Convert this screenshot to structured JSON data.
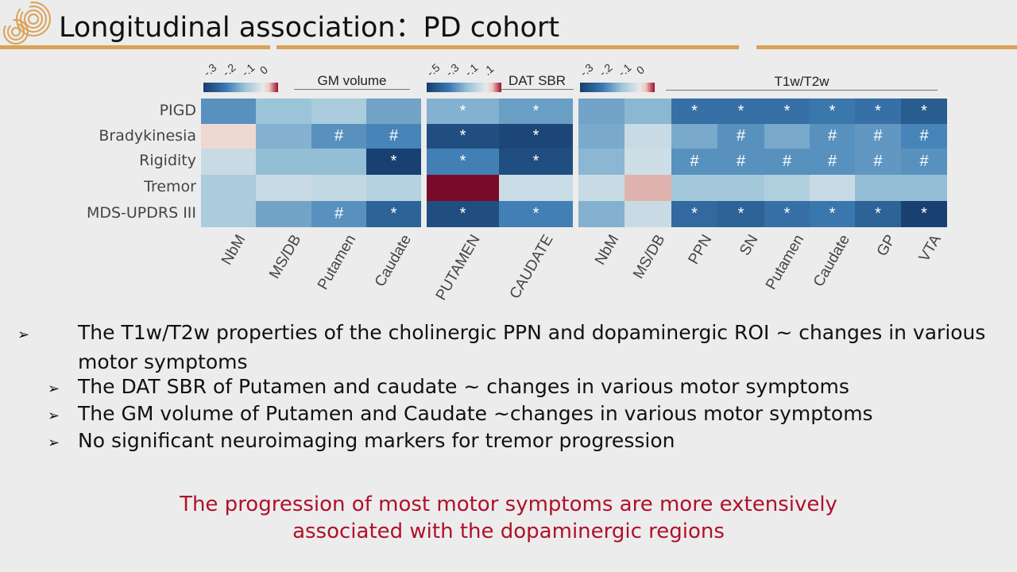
{
  "header": {
    "title": "Longitudinal association：PD cohort",
    "accent_color": "#d9a257"
  },
  "chart_data": {
    "type": "heatmap",
    "rows": [
      "PIGD",
      "Bradykinesia",
      "Rigidity",
      "Tremor",
      "MDS-UPDRS III"
    ],
    "panels": [
      {
        "group_label": "GM volume",
        "columns": [
          "NbM",
          "MS/DB",
          "Putamen",
          "Caudate"
        ],
        "colorbar_ticks": [
          "-.3",
          "-.2",
          "-.1",
          "0"
        ],
        "range": [
          -0.33,
          0.05
        ],
        "values": [
          [
            -0.2,
            -0.12,
            -0.1,
            -0.17
          ],
          [
            0.01,
            -0.15,
            -0.2,
            -0.22
          ],
          [
            -0.05,
            -0.13,
            -0.13,
            -0.32
          ],
          [
            -0.1,
            -0.05,
            -0.06,
            -0.08
          ],
          [
            -0.1,
            -0.17,
            -0.2,
            -0.27
          ]
        ],
        "marks": [
          [
            "",
            "",
            "",
            ""
          ],
          [
            "",
            "",
            "#",
            "#"
          ],
          [
            "",
            "",
            "",
            "*"
          ],
          [
            "",
            "",
            "",
            ""
          ],
          [
            "",
            "",
            "#",
            "*"
          ]
        ]
      },
      {
        "group_label": "DAT SBR",
        "columns": [
          "PUTAMEN",
          "CAUDATE"
        ],
        "colorbar_ticks": [
          "-.5",
          "-.3",
          "-.1",
          ".1"
        ],
        "range": [
          -0.55,
          0.15
        ],
        "values": [
          [
            -0.25,
            -0.3
          ],
          [
            -0.5,
            -0.52
          ],
          [
            -0.38,
            -0.5
          ],
          [
            0.15,
            -0.08
          ],
          [
            -0.5,
            -0.38
          ]
        ],
        "marks": [
          [
            "*",
            "*"
          ],
          [
            "*",
            "*"
          ],
          [
            "*",
            "*"
          ],
          [
            "",
            ""
          ],
          [
            "*",
            "*"
          ]
        ]
      },
      {
        "group_label": "T1w/T2w",
        "columns": [
          "NbM",
          "MS/DB",
          "PPN",
          "SN",
          "Putamen",
          "Caudate",
          "GP",
          "VTA"
        ],
        "colorbar_ticks": [
          "-.3",
          "-.2",
          "-.1",
          "0"
        ],
        "range": [
          -0.33,
          0.05
        ],
        "values": [
          [
            -0.17,
            -0.14,
            -0.25,
            -0.25,
            -0.25,
            -0.24,
            -0.25,
            -0.28
          ],
          [
            -0.16,
            -0.05,
            -0.16,
            -0.2,
            -0.16,
            -0.2,
            -0.19,
            -0.22
          ],
          [
            -0.14,
            -0.04,
            -0.2,
            -0.2,
            -0.2,
            -0.2,
            -0.19,
            -0.2
          ],
          [
            -0.05,
            0.02,
            -0.11,
            -0.11,
            -0.09,
            -0.05,
            -0.13,
            -0.13
          ],
          [
            -0.15,
            -0.05,
            -0.26,
            -0.27,
            -0.25,
            -0.24,
            -0.27,
            -0.32
          ]
        ],
        "marks": [
          [
            "",
            "",
            "*",
            "*",
            "*",
            "*",
            "*",
            "*"
          ],
          [
            "",
            "",
            "",
            "#",
            "",
            "#",
            "#",
            "#"
          ],
          [
            "",
            "",
            "#",
            "#",
            "#",
            "#",
            "#",
            "#"
          ],
          [
            "",
            "",
            "",
            "",
            "",
            "",
            "",
            ""
          ],
          [
            "",
            "",
            "*",
            "*",
            "*",
            "*",
            "*",
            "*"
          ]
        ]
      }
    ],
    "colorscale": "RdBu diverging (blue negative, red positive)"
  },
  "bullets": [
    "The T1w/T2w properties of the cholinergic PPN and dopaminergic ROI ~ changes in various motor symptoms",
    "The DAT SBR of Putamen and caudate ~ changes in various motor symptoms",
    "The GM volume of Putamen and Caudate ~changes in various motor symptoms",
    "No significant neuroimaging markers for tremor progression"
  ],
  "bullet_marker": "➢",
  "conclusion": [
    "The progression of most motor symptoms are more extensively",
    "associated with the dopaminergic regions"
  ],
  "conclusion_color": "#b0102a"
}
